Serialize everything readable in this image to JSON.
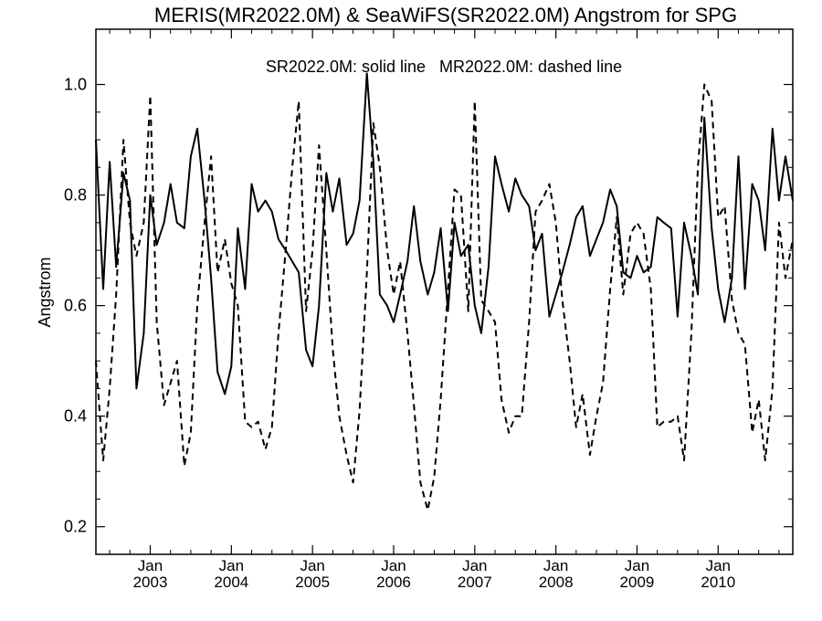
{
  "chart_data": {
    "type": "line",
    "title": "MERIS(MR2022.0M) & SeaWiFS(SR2022.0M)  Angstrom for SPG",
    "annotation": "SR2022.0M: solid line   MR2022.0M: dashed line",
    "ylabel": "Angstrom",
    "xlabel": "",
    "xlim": [
      2002.33,
      2010.92
    ],
    "ylim": [
      0.15,
      1.1
    ],
    "yticks": [
      "0.2",
      "0.4",
      "0.6",
      "0.8",
      "1.0"
    ],
    "xticks": [
      {
        "month": "Jan",
        "year": "2003"
      },
      {
        "month": "Jan",
        "year": "2004"
      },
      {
        "month": "Jan",
        "year": "2005"
      },
      {
        "month": "Jan",
        "year": "2006"
      },
      {
        "month": "Jan",
        "year": "2007"
      },
      {
        "month": "Jan",
        "year": "2008"
      },
      {
        "month": "Jan",
        "year": "2009"
      },
      {
        "month": "Jan",
        "year": "2010"
      }
    ],
    "grid": false,
    "series": [
      {
        "name": "SR2022.0M",
        "style": "solid",
        "color": "#000000",
        "points": [
          [
            2002.33,
            0.9
          ],
          [
            2002.42,
            0.63
          ],
          [
            2002.5,
            0.86
          ],
          [
            2002.58,
            0.67
          ],
          [
            2002.67,
            0.84
          ],
          [
            2002.75,
            0.79
          ],
          [
            2002.83,
            0.45
          ],
          [
            2002.92,
            0.55
          ],
          [
            2003.0,
            0.8
          ],
          [
            2003.08,
            0.71
          ],
          [
            2003.17,
            0.75
          ],
          [
            2003.25,
            0.82
          ],
          [
            2003.33,
            0.75
          ],
          [
            2003.42,
            0.74
          ],
          [
            2003.5,
            0.87
          ],
          [
            2003.58,
            0.92
          ],
          [
            2003.67,
            0.79
          ],
          [
            2003.75,
            0.65
          ],
          [
            2003.83,
            0.48
          ],
          [
            2003.92,
            0.44
          ],
          [
            2004.0,
            0.49
          ],
          [
            2004.08,
            0.74
          ],
          [
            2004.17,
            0.63
          ],
          [
            2004.25,
            0.82
          ],
          [
            2004.33,
            0.77
          ],
          [
            2004.42,
            0.79
          ],
          [
            2004.5,
            0.77
          ],
          [
            2004.58,
            0.72
          ],
          [
            2004.67,
            0.7
          ],
          [
            2004.75,
            0.68
          ],
          [
            2004.83,
            0.66
          ],
          [
            2004.92,
            0.52
          ],
          [
            2005.0,
            0.49
          ],
          [
            2005.08,
            0.6
          ],
          [
            2005.17,
            0.84
          ],
          [
            2005.25,
            0.77
          ],
          [
            2005.33,
            0.83
          ],
          [
            2005.42,
            0.71
          ],
          [
            2005.5,
            0.73
          ],
          [
            2005.58,
            0.79
          ],
          [
            2005.67,
            1.02
          ],
          [
            2005.75,
            0.86
          ],
          [
            2005.83,
            0.62
          ],
          [
            2005.92,
            0.6
          ],
          [
            2006.0,
            0.57
          ],
          [
            2006.08,
            0.62
          ],
          [
            2006.17,
            0.68
          ],
          [
            2006.25,
            0.78
          ],
          [
            2006.33,
            0.68
          ],
          [
            2006.42,
            0.62
          ],
          [
            2006.5,
            0.66
          ],
          [
            2006.58,
            0.74
          ],
          [
            2006.67,
            0.59
          ],
          [
            2006.75,
            0.75
          ],
          [
            2006.83,
            0.69
          ],
          [
            2006.92,
            0.71
          ],
          [
            2007.0,
            0.6
          ],
          [
            2007.08,
            0.55
          ],
          [
            2007.17,
            0.67
          ],
          [
            2007.25,
            0.87
          ],
          [
            2007.33,
            0.82
          ],
          [
            2007.42,
            0.77
          ],
          [
            2007.5,
            0.83
          ],
          [
            2007.58,
            0.8
          ],
          [
            2007.67,
            0.78
          ],
          [
            2007.75,
            0.7
          ],
          [
            2007.83,
            0.73
          ],
          [
            2007.92,
            0.58
          ],
          [
            2008.0,
            0.62
          ],
          [
            2008.08,
            0.66
          ],
          [
            2008.17,
            0.71
          ],
          [
            2008.25,
            0.76
          ],
          [
            2008.33,
            0.78
          ],
          [
            2008.42,
            0.69
          ],
          [
            2008.5,
            0.72
          ],
          [
            2008.58,
            0.75
          ],
          [
            2008.67,
            0.81
          ],
          [
            2008.75,
            0.78
          ],
          [
            2008.83,
            0.66
          ],
          [
            2008.92,
            0.65
          ],
          [
            2009.0,
            0.69
          ],
          [
            2009.08,
            0.66
          ],
          [
            2009.17,
            0.67
          ],
          [
            2009.25,
            0.76
          ],
          [
            2009.33,
            0.75
          ],
          [
            2009.42,
            0.74
          ],
          [
            2009.5,
            0.58
          ],
          [
            2009.58,
            0.75
          ],
          [
            2009.67,
            0.69
          ],
          [
            2009.75,
            0.62
          ],
          [
            2009.83,
            0.94
          ],
          [
            2009.92,
            0.74
          ],
          [
            2010.0,
            0.63
          ],
          [
            2010.08,
            0.57
          ],
          [
            2010.17,
            0.65
          ],
          [
            2010.25,
            0.87
          ],
          [
            2010.33,
            0.63
          ],
          [
            2010.42,
            0.82
          ],
          [
            2010.5,
            0.79
          ],
          [
            2010.58,
            0.7
          ],
          [
            2010.67,
            0.92
          ],
          [
            2010.75,
            0.79
          ],
          [
            2010.83,
            0.87
          ],
          [
            2010.92,
            0.79
          ]
        ]
      },
      {
        "name": "MR2022.0M",
        "style": "dashed",
        "color": "#000000",
        "points": [
          [
            2002.33,
            0.5
          ],
          [
            2002.42,
            0.32
          ],
          [
            2002.5,
            0.45
          ],
          [
            2002.58,
            0.62
          ],
          [
            2002.67,
            0.9
          ],
          [
            2002.75,
            0.75
          ],
          [
            2002.83,
            0.69
          ],
          [
            2002.92,
            0.75
          ],
          [
            2003.0,
            0.98
          ],
          [
            2003.08,
            0.57
          ],
          [
            2003.17,
            0.42
          ],
          [
            2003.25,
            0.46
          ],
          [
            2003.33,
            0.5
          ],
          [
            2003.42,
            0.31
          ],
          [
            2003.5,
            0.37
          ],
          [
            2003.58,
            0.6
          ],
          [
            2003.67,
            0.75
          ],
          [
            2003.75,
            0.87
          ],
          [
            2003.83,
            0.66
          ],
          [
            2003.92,
            0.72
          ],
          [
            2004.0,
            0.64
          ],
          [
            2004.08,
            0.6
          ],
          [
            2004.17,
            0.39
          ],
          [
            2004.25,
            0.38
          ],
          [
            2004.33,
            0.39
          ],
          [
            2004.42,
            0.34
          ],
          [
            2004.5,
            0.38
          ],
          [
            2004.58,
            0.55
          ],
          [
            2004.67,
            0.7
          ],
          [
            2004.75,
            0.85
          ],
          [
            2004.83,
            0.97
          ],
          [
            2004.92,
            0.59
          ],
          [
            2005.0,
            0.7
          ],
          [
            2005.08,
            0.89
          ],
          [
            2005.17,
            0.7
          ],
          [
            2005.25,
            0.52
          ],
          [
            2005.33,
            0.4
          ],
          [
            2005.42,
            0.33
          ],
          [
            2005.5,
            0.28
          ],
          [
            2005.58,
            0.41
          ],
          [
            2005.67,
            0.66
          ],
          [
            2005.75,
            0.93
          ],
          [
            2005.83,
            0.85
          ],
          [
            2005.92,
            0.7
          ],
          [
            2006.0,
            0.62
          ],
          [
            2006.08,
            0.68
          ],
          [
            2006.17,
            0.55
          ],
          [
            2006.25,
            0.42
          ],
          [
            2006.33,
            0.28
          ],
          [
            2006.42,
            0.23
          ],
          [
            2006.5,
            0.29
          ],
          [
            2006.58,
            0.43
          ],
          [
            2006.67,
            0.63
          ],
          [
            2006.75,
            0.81
          ],
          [
            2006.83,
            0.8
          ],
          [
            2006.92,
            0.59
          ],
          [
            2007.0,
            0.97
          ],
          [
            2007.08,
            0.61
          ],
          [
            2007.17,
            0.59
          ],
          [
            2007.25,
            0.57
          ],
          [
            2007.33,
            0.43
          ],
          [
            2007.42,
            0.37
          ],
          [
            2007.5,
            0.4
          ],
          [
            2007.58,
            0.4
          ],
          [
            2007.67,
            0.57
          ],
          [
            2007.75,
            0.77
          ],
          [
            2007.83,
            0.79
          ],
          [
            2007.92,
            0.82
          ],
          [
            2008.0,
            0.75
          ],
          [
            2008.08,
            0.61
          ],
          [
            2008.17,
            0.5
          ],
          [
            2008.25,
            0.38
          ],
          [
            2008.33,
            0.44
          ],
          [
            2008.42,
            0.33
          ],
          [
            2008.5,
            0.4
          ],
          [
            2008.58,
            0.46
          ],
          [
            2008.67,
            0.63
          ],
          [
            2008.75,
            0.76
          ],
          [
            2008.83,
            0.62
          ],
          [
            2008.92,
            0.73
          ],
          [
            2009.0,
            0.75
          ],
          [
            2009.08,
            0.73
          ],
          [
            2009.17,
            0.63
          ],
          [
            2009.25,
            0.38
          ],
          [
            2009.33,
            0.39
          ],
          [
            2009.42,
            0.39
          ],
          [
            2009.5,
            0.4
          ],
          [
            2009.58,
            0.32
          ],
          [
            2009.67,
            0.55
          ],
          [
            2009.75,
            0.85
          ],
          [
            2009.83,
            1.0
          ],
          [
            2009.92,
            0.97
          ],
          [
            2010.0,
            0.76
          ],
          [
            2010.08,
            0.78
          ],
          [
            2010.17,
            0.61
          ],
          [
            2010.25,
            0.55
          ],
          [
            2010.33,
            0.53
          ],
          [
            2010.42,
            0.37
          ],
          [
            2010.5,
            0.43
          ],
          [
            2010.58,
            0.32
          ],
          [
            2010.67,
            0.45
          ],
          [
            2010.75,
            0.75
          ],
          [
            2010.83,
            0.65
          ],
          [
            2010.92,
            0.72
          ]
        ]
      }
    ]
  }
}
